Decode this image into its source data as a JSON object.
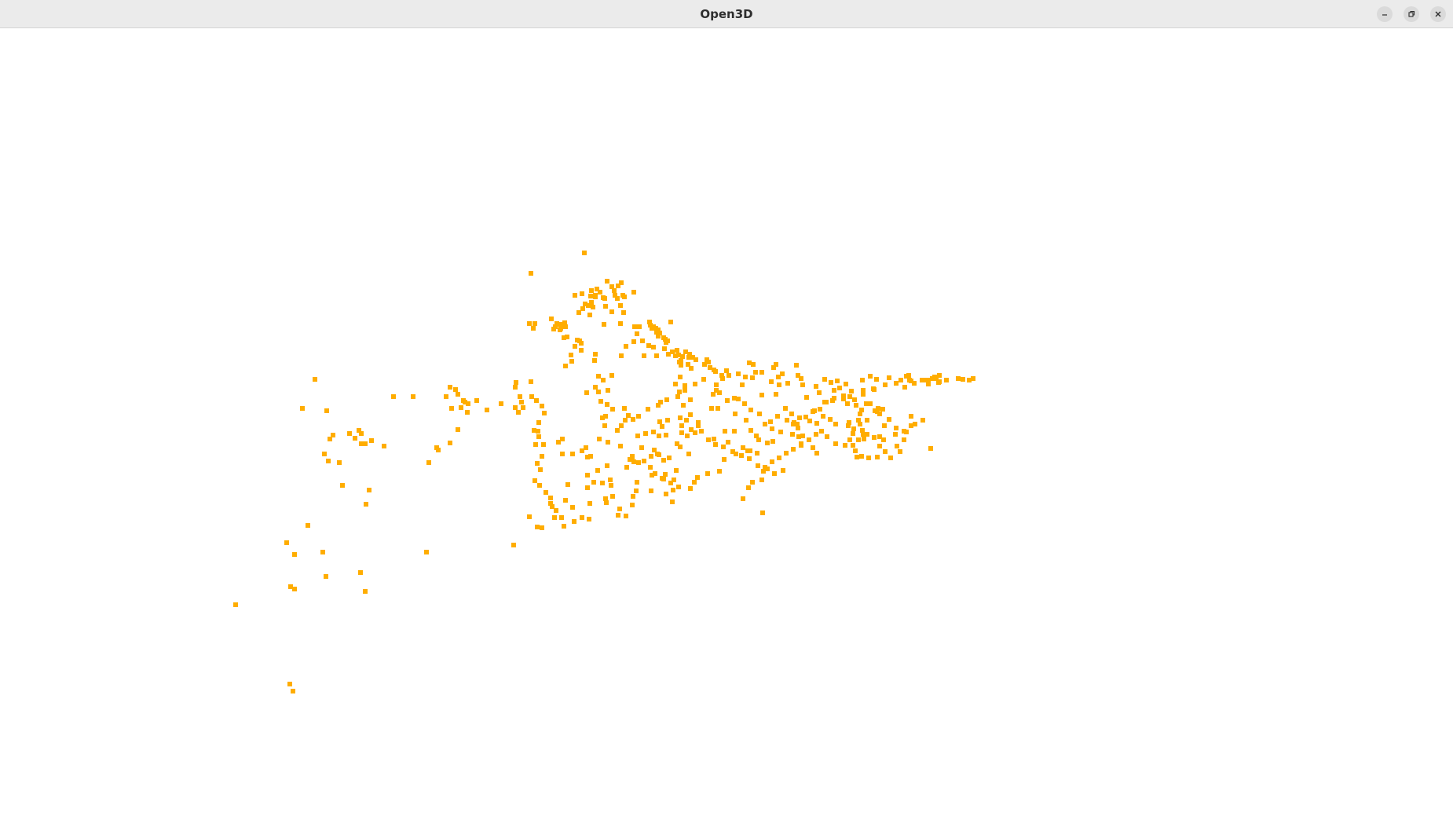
{
  "window": {
    "title": "Open3D",
    "controls": [
      "minimize-icon",
      "restore-icon",
      "close-icon"
    ]
  },
  "viewport": {
    "background": "#ffffff",
    "point_color": "#ffad00"
  }
}
